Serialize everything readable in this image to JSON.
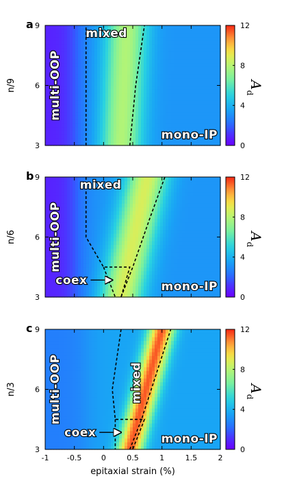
{
  "chart_data": [
    {
      "type": "heatmap",
      "panel_label": "a",
      "ylabel": "n/9",
      "y_ticks": [
        "3",
        "6",
        "9"
      ],
      "ylim": [
        3,
        9
      ],
      "xlim": [
        -1,
        2
      ],
      "x_ticks": [],
      "xlabel": "",
      "colorbar": {
        "label": "A",
        "sub": "d",
        "ticks": [
          "0",
          "4",
          "8",
          "12"
        ],
        "range": [
          0,
          12
        ]
      },
      "regions": [
        "multi-OOP",
        "mixed",
        "mono-IP"
      ],
      "coex_label": "",
      "boundaries": [
        {
          "points": [
            [
              -0.3,
              3
            ],
            [
              -0.3,
              9
            ]
          ]
        },
        {
          "points": [
            [
              0.45,
              3
            ],
            [
              0.55,
              6
            ],
            [
              0.7,
              9
            ]
          ]
        }
      ],
      "field": {
        "blue_level": 3.2,
        "left_low": 0.8,
        "low_x": -0.45,
        "ridge_x0": 0.3,
        "ridge_x1": 0.4,
        "ridge_peak": 5.5,
        "ridge_width": 0.35
      }
    },
    {
      "type": "heatmap",
      "panel_label": "b",
      "ylabel": "n/6",
      "y_ticks": [
        "3",
        "6",
        "9"
      ],
      "ylim": [
        3,
        9
      ],
      "xlim": [
        -1,
        2
      ],
      "x_ticks": [],
      "xlabel": "",
      "colorbar": {
        "label": "A",
        "sub": "d",
        "ticks": [
          "0",
          "4",
          "8",
          "12"
        ],
        "range": [
          0,
          12
        ]
      },
      "regions": [
        "multi-OOP",
        "mixed",
        "mono-IP"
      ],
      "coex_label": "coex",
      "boundaries": [
        {
          "points": [
            [
              -0.3,
              9
            ],
            [
              -0.3,
              6
            ],
            [
              0.0,
              4.5
            ],
            [
              0.45,
              4.5
            ],
            [
              0.3,
              3
            ]
          ]
        },
        {
          "points": [
            [
              0.0,
              4.5
            ],
            [
              0.2,
              3
            ]
          ]
        },
        {
          "points": [
            [
              0.3,
              3
            ],
            [
              0.5,
              4.5
            ],
            [
              0.8,
              7
            ],
            [
              1.05,
              9
            ]
          ]
        }
      ],
      "field": {
        "blue_level": 3.2,
        "left_low": 0.8,
        "low_x": -0.45,
        "ridge_x0": 0.3,
        "ridge_x1": 0.75,
        "ridge_peak": 6.5,
        "ridge_width": 0.35
      }
    },
    {
      "type": "heatmap",
      "panel_label": "c",
      "ylabel": "n/3",
      "y_ticks": [
        "3",
        "6",
        "9"
      ],
      "ylim": [
        3,
        9
      ],
      "xlim": [
        -1,
        2
      ],
      "x_ticks": [
        "-1",
        "-0.5",
        "0",
        "0.5",
        "1",
        "1.5",
        "2"
      ],
      "xlabel": "epitaxial strain (%)",
      "colorbar": {
        "label": "A",
        "sub": "d",
        "ticks": [
          "0",
          "4",
          "8",
          "12"
        ],
        "range": [
          0,
          12
        ]
      },
      "regions": [
        "multi-OOP",
        "mixed",
        "mono-IP"
      ],
      "coex_label": "coex",
      "boundaries": [
        {
          "points": [
            [
              0.3,
              9
            ],
            [
              0.15,
              6
            ],
            [
              0.2,
              4.5
            ],
            [
              0.7,
              4.5
            ],
            [
              0.5,
              3
            ]
          ]
        },
        {
          "points": [
            [
              0.2,
              4.5
            ],
            [
              0.2,
              3
            ]
          ]
        },
        {
          "points": [
            [
              0.45,
              3
            ],
            [
              0.65,
              4.5
            ],
            [
              1.15,
              9
            ]
          ]
        }
      ],
      "field": {
        "blue_level": 3.6,
        "left_low": 2.6,
        "low_x": -0.3,
        "ridge_x0": 0.45,
        "ridge_x1": 1.0,
        "ridge_peak": 9.2,
        "ridge_width": 0.22
      }
    }
  ]
}
